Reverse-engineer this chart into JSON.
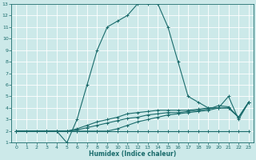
{
  "xlabel": "Humidex (Indice chaleur)",
  "bg_color": "#cce9e9",
  "line_color": "#1a6b6b",
  "grid_color": "#ffffff",
  "xlim": [
    -0.5,
    23.5
  ],
  "ylim": [
    1,
    13
  ],
  "xticks": [
    0,
    1,
    2,
    3,
    4,
    5,
    6,
    7,
    8,
    9,
    10,
    11,
    12,
    13,
    14,
    15,
    16,
    17,
    18,
    19,
    20,
    21,
    22,
    23
  ],
  "yticks": [
    1,
    2,
    3,
    4,
    5,
    6,
    7,
    8,
    9,
    10,
    11,
    12,
    13
  ],
  "lines": [
    {
      "x": [
        0,
        1,
        2,
        3,
        4,
        5,
        6,
        7,
        8,
        9,
        10,
        11,
        12,
        13,
        14,
        15,
        16,
        17,
        18,
        19,
        20,
        21,
        22,
        23
      ],
      "y": [
        2,
        2,
        2,
        2,
        2,
        1,
        3,
        6,
        9,
        11,
        11.5,
        12,
        13,
        13,
        13,
        11,
        8,
        5,
        4.5,
        4,
        4,
        5,
        3,
        4.5
      ]
    },
    {
      "x": [
        0,
        3,
        4,
        5,
        6,
        7,
        8,
        9,
        10,
        11,
        12,
        13,
        14,
        15,
        16,
        17,
        18,
        19,
        20,
        21,
        22,
        23
      ],
      "y": [
        2,
        2,
        2,
        2,
        2,
        2,
        2,
        2,
        2,
        2,
        2,
        2,
        2,
        2,
        2,
        2,
        2,
        2,
        2,
        2,
        2,
        2
      ]
    },
    {
      "x": [
        0,
        3,
        4,
        5,
        6,
        7,
        8,
        9,
        10,
        11,
        12,
        13,
        14,
        15,
        16,
        17,
        18,
        19,
        20,
        21,
        22,
        23
      ],
      "y": [
        2,
        2,
        2,
        2,
        2,
        2,
        2,
        2,
        2.2,
        2.5,
        2.8,
        3.0,
        3.2,
        3.4,
        3.5,
        3.6,
        3.7,
        3.8,
        4.0,
        4.0,
        3.2,
        4.5
      ]
    },
    {
      "x": [
        0,
        3,
        4,
        5,
        6,
        7,
        8,
        9,
        10,
        11,
        12,
        13,
        14,
        15,
        16,
        17,
        18,
        19,
        20,
        21,
        22,
        23
      ],
      "y": [
        2,
        2,
        2,
        2,
        2.2,
        2.5,
        2.8,
        3.0,
        3.2,
        3.5,
        3.6,
        3.7,
        3.8,
        3.8,
        3.8,
        3.8,
        3.9,
        4.0,
        4.0,
        4.0,
        3.2,
        4.5
      ]
    },
    {
      "x": [
        0,
        3,
        4,
        5,
        6,
        7,
        8,
        9,
        10,
        11,
        12,
        13,
        14,
        15,
        16,
        17,
        18,
        19,
        20,
        21,
        22,
        23
      ],
      "y": [
        2,
        2,
        2,
        2,
        2.1,
        2.3,
        2.5,
        2.7,
        2.9,
        3.1,
        3.2,
        3.4,
        3.5,
        3.6,
        3.6,
        3.7,
        3.8,
        3.9,
        4.2,
        4.1,
        3.2,
        4.5
      ]
    }
  ]
}
